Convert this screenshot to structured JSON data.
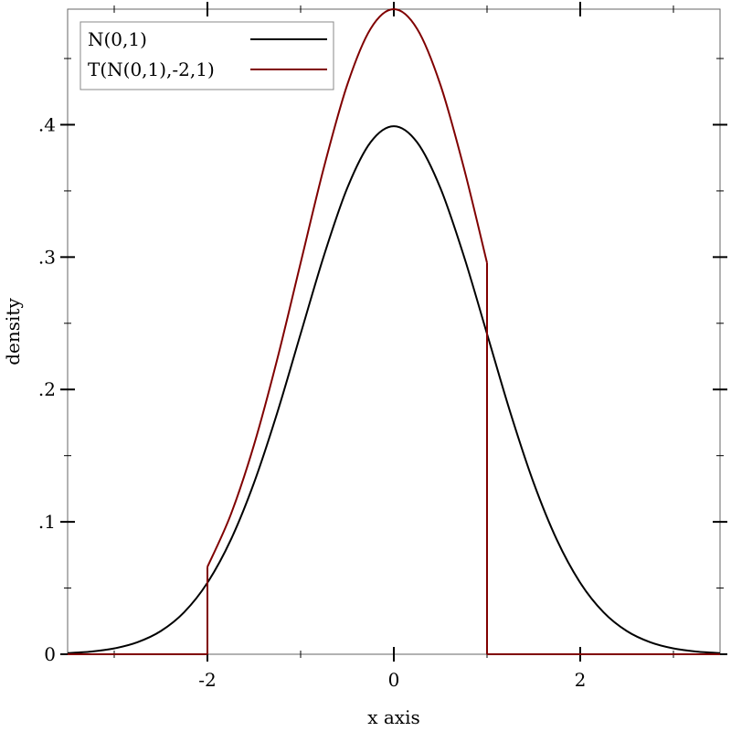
{
  "chart_data": {
    "type": "line",
    "title": "",
    "xlabel": "x axis",
    "ylabel": "density",
    "xlim": [
      -3.5,
      3.5
    ],
    "ylim": [
      0,
      0.4873
    ],
    "x_ticks": [
      {
        "value": -2,
        "label": "-2"
      },
      {
        "value": 0,
        "label": "0"
      },
      {
        "value": 2,
        "label": "2"
      }
    ],
    "x_minor_ticks": [
      -3,
      -1,
      1,
      3
    ],
    "y_ticks": [
      {
        "value": 0,
        "label": "0"
      },
      {
        "value": 0.1,
        "label": ".1"
      },
      {
        "value": 0.2,
        "label": ".2"
      },
      {
        "value": 0.3,
        "label": ".3"
      },
      {
        "value": 0.4,
        "label": ".4"
      }
    ],
    "y_minor_ticks": [
      0.05,
      0.15,
      0.25,
      0.35,
      0.45
    ],
    "grid": false,
    "legend_position": "top-left",
    "series": [
      {
        "name": "N(0,1)",
        "color": "#000000",
        "segments": [
          [
            [
              -3.5,
              0.0009
            ],
            [
              -3.25,
              0.002
            ],
            [
              -3,
              0.0044
            ],
            [
              -2.75,
              0.0091
            ],
            [
              -2.5,
              0.0175
            ],
            [
              -2.25,
              0.0317
            ],
            [
              -2,
              0.054
            ],
            [
              -1.75,
              0.0863
            ],
            [
              -1.5,
              0.1295
            ],
            [
              -1.25,
              0.1826
            ],
            [
              -1,
              0.242
            ],
            [
              -0.75,
              0.3011
            ],
            [
              -0.5,
              0.3521
            ],
            [
              -0.25,
              0.3867
            ],
            [
              0,
              0.3989
            ],
            [
              0.25,
              0.3867
            ],
            [
              0.5,
              0.3521
            ],
            [
              0.75,
              0.3011
            ],
            [
              1,
              0.242
            ],
            [
              1.25,
              0.1826
            ],
            [
              1.5,
              0.1295
            ],
            [
              1.75,
              0.0863
            ],
            [
              2,
              0.054
            ],
            [
              2.25,
              0.0317
            ],
            [
              2.5,
              0.0175
            ],
            [
              2.75,
              0.0091
            ],
            [
              3,
              0.0044
            ],
            [
              3.25,
              0.002
            ],
            [
              3.5,
              0.0009
            ]
          ]
        ]
      },
      {
        "name": "T(N(0,1),-2,1)",
        "color": "#800000",
        "segments": [
          [
            [
              -3.5,
              0
            ],
            [
              -2,
              0
            ]
          ],
          [
            [
              -2,
              0
            ],
            [
              -2,
              0.066
            ]
          ],
          [
            [
              -2,
              0.066
            ],
            [
              -1.75,
              0.1054
            ],
            [
              -1.5,
              0.1582
            ],
            [
              -1.25,
              0.2231
            ],
            [
              -1,
              0.2956
            ],
            [
              -0.75,
              0.3678
            ],
            [
              -0.5,
              0.4301
            ],
            [
              -0.25,
              0.4724
            ],
            [
              0,
              0.4873
            ],
            [
              0.25,
              0.4724
            ],
            [
              0.5,
              0.4301
            ],
            [
              0.75,
              0.3678
            ],
            [
              1,
              0.2956
            ]
          ],
          [
            [
              1,
              0.2956
            ],
            [
              1,
              0
            ]
          ],
          [
            [
              1,
              0
            ],
            [
              3.5,
              0
            ]
          ]
        ]
      }
    ]
  }
}
